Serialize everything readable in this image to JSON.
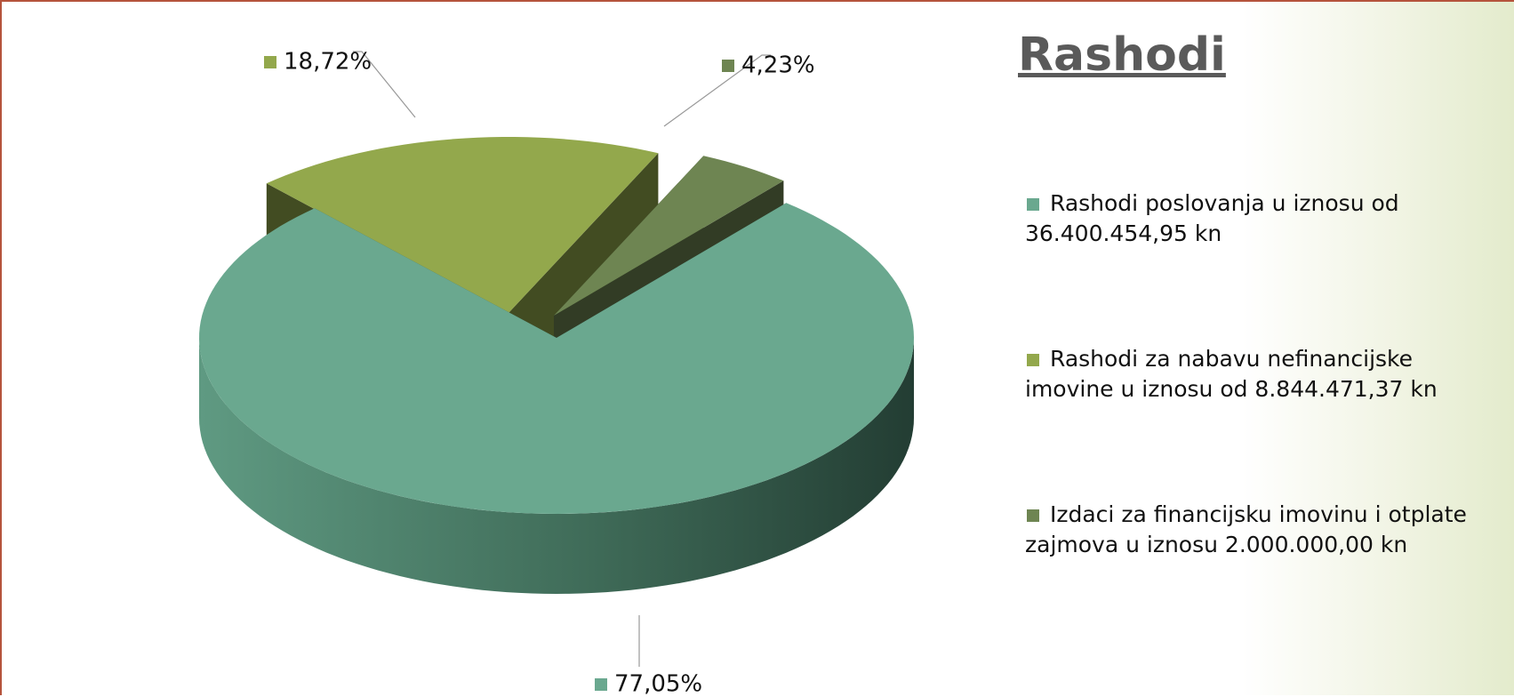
{
  "chart_data": {
    "type": "pie",
    "title": "Rashodi",
    "categories": [
      "Rashodi poslovanja u iznosu od 36.400.454,95 kn",
      "Rashodi za nabavu nefinancijske imovine u iznosu od 8.844.471,37 kn",
      "Izdaci za financijsku imovinu i otplate zajmova u iznosu 2.000.000,00 kn"
    ],
    "values": [
      77.05,
      18.72,
      4.23
    ],
    "value_labels": [
      "77,05%",
      "18,72%",
      "4,23%"
    ],
    "colors": [
      "#6aa88f",
      "#93a84c",
      "#6e8552"
    ],
    "legend": "right"
  }
}
